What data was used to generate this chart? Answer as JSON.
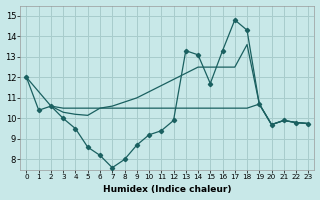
{
  "xlabel": "Humidex (Indice chaleur)",
  "background_color": "#c8e8e8",
  "grid_color": "#a8cccc",
  "line_color": "#1a6060",
  "xlim": [
    -0.5,
    23.5
  ],
  "ylim": [
    7.5,
    15.5
  ],
  "yticks": [
    8,
    9,
    10,
    11,
    12,
    13,
    14,
    15
  ],
  "xticks": [
    0,
    1,
    2,
    3,
    4,
    5,
    6,
    7,
    8,
    9,
    10,
    11,
    12,
    13,
    14,
    15,
    16,
    17,
    18,
    19,
    20,
    21,
    22,
    23
  ],
  "line1_x": [
    0,
    1,
    2,
    3,
    4,
    5,
    6,
    7,
    8,
    9,
    10,
    11,
    12,
    13,
    14,
    15,
    16,
    17,
    18,
    19,
    20,
    21,
    22,
    23
  ],
  "line1_y": [
    12.0,
    10.4,
    10.6,
    10.0,
    9.5,
    8.6,
    8.2,
    7.6,
    8.0,
    8.7,
    9.2,
    9.4,
    9.9,
    13.3,
    13.1,
    11.7,
    13.3,
    14.8,
    14.3,
    10.7,
    9.7,
    9.9,
    9.8,
    9.75
  ],
  "line2_x": [
    0,
    2,
    3,
    4,
    5,
    6,
    7,
    8,
    9,
    10,
    11,
    12,
    13,
    14,
    15,
    16,
    17,
    18,
    19,
    20,
    21,
    22,
    23
  ],
  "line2_y": [
    12.0,
    10.6,
    10.3,
    10.2,
    10.15,
    10.5,
    10.6,
    10.8,
    11.0,
    11.3,
    11.6,
    11.9,
    12.2,
    12.5,
    12.5,
    12.5,
    12.5,
    13.6,
    10.7,
    9.7,
    9.9,
    9.8,
    9.75
  ],
  "line3_x": [
    2,
    3,
    4,
    5,
    6,
    7,
    8,
    9,
    10,
    11,
    12,
    13,
    14,
    15,
    16,
    17,
    18,
    19,
    20,
    21,
    22,
    23
  ],
  "line3_y": [
    10.6,
    10.5,
    10.5,
    10.5,
    10.5,
    10.5,
    10.5,
    10.5,
    10.5,
    10.5,
    10.5,
    10.5,
    10.5,
    10.5,
    10.5,
    10.5,
    10.5,
    10.7,
    9.7,
    9.9,
    9.8,
    9.75
  ]
}
